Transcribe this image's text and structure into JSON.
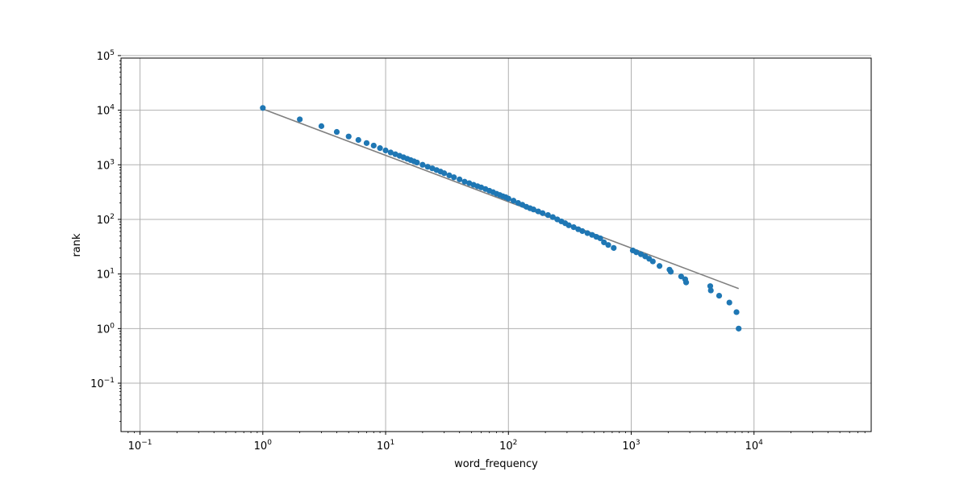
{
  "chart_data": {
    "type": "scatter",
    "title": "",
    "xlabel": "word_frequency",
    "ylabel": "rank",
    "x_scale": "log",
    "y_scale": "log",
    "xlim": [
      0.07,
      90000
    ],
    "ylim": [
      0.013,
      90000
    ],
    "grid": true,
    "x_ticks": [
      {
        "base": "10",
        "exp": "−1",
        "value": 0.1
      },
      {
        "base": "10",
        "exp": "0",
        "value": 1
      },
      {
        "base": "10",
        "exp": "1",
        "value": 10
      },
      {
        "base": "10",
        "exp": "2",
        "value": 100
      },
      {
        "base": "10",
        "exp": "3",
        "value": 1000
      },
      {
        "base": "10",
        "exp": "4",
        "value": 10000
      }
    ],
    "y_ticks": [
      {
        "base": "10",
        "exp": "−1",
        "value": 0.1
      },
      {
        "base": "10",
        "exp": "0",
        "value": 1
      },
      {
        "base": "10",
        "exp": "1",
        "value": 10
      },
      {
        "base": "10",
        "exp": "2",
        "value": 100
      },
      {
        "base": "10",
        "exp": "3",
        "value": 1000
      },
      {
        "base": "10",
        "exp": "4",
        "value": 10000
      },
      {
        "base": "10",
        "exp": "5",
        "value": 100000
      }
    ],
    "series": [
      {
        "kind": "scatter",
        "color": "#1f77b4",
        "points": [
          [
            1,
            11000
          ],
          [
            2,
            6800
          ],
          [
            3,
            5100
          ],
          [
            4,
            4000
          ],
          [
            5,
            3300
          ],
          [
            6,
            2850
          ],
          [
            7,
            2500
          ],
          [
            8,
            2250
          ],
          [
            9,
            2020
          ],
          [
            10,
            1830
          ],
          [
            11,
            1680
          ],
          [
            12,
            1560
          ],
          [
            13,
            1460
          ],
          [
            14,
            1370
          ],
          [
            15,
            1290
          ],
          [
            16,
            1220
          ],
          [
            17,
            1160
          ],
          [
            18,
            1100
          ],
          [
            20,
            1000
          ],
          [
            22,
            920
          ],
          [
            24,
            860
          ],
          [
            26,
            800
          ],
          [
            28,
            750
          ],
          [
            30,
            700
          ],
          [
            33,
            640
          ],
          [
            36,
            590
          ],
          [
            40,
            540
          ],
          [
            44,
            490
          ],
          [
            48,
            460
          ],
          [
            52,
            430
          ],
          [
            56,
            405
          ],
          [
            60,
            385
          ],
          [
            65,
            360
          ],
          [
            70,
            335
          ],
          [
            75,
            315
          ],
          [
            80,
            295
          ],
          [
            85,
            280
          ],
          [
            90,
            265
          ],
          [
            95,
            255
          ],
          [
            100,
            240
          ],
          [
            110,
            220
          ],
          [
            120,
            200
          ],
          [
            130,
            185
          ],
          [
            140,
            170
          ],
          [
            150,
            160
          ],
          [
            160,
            152
          ],
          [
            175,
            140
          ],
          [
            190,
            130
          ],
          [
            210,
            120
          ],
          [
            230,
            110
          ],
          [
            250,
            100
          ],
          [
            270,
            92
          ],
          [
            290,
            85
          ],
          [
            310,
            78
          ],
          [
            340,
            72
          ],
          [
            370,
            66
          ],
          [
            400,
            61
          ],
          [
            440,
            56
          ],
          [
            480,
            52
          ],
          [
            520,
            48
          ],
          [
            560,
            45
          ],
          [
            600,
            38
          ],
          [
            650,
            34
          ],
          [
            720,
            30
          ],
          [
            1030,
            27
          ],
          [
            1100,
            25
          ],
          [
            1200,
            23
          ],
          [
            1300,
            21
          ],
          [
            1400,
            19
          ],
          [
            1500,
            17
          ],
          [
            1700,
            14
          ],
          [
            2050,
            12
          ],
          [
            2100,
            11
          ],
          [
            2550,
            9
          ],
          [
            2750,
            8
          ],
          [
            2800,
            7
          ],
          [
            4400,
            6
          ],
          [
            4450,
            5
          ],
          [
            5200,
            4
          ],
          [
            6300,
            3
          ],
          [
            7200,
            2
          ],
          [
            7500,
            1
          ]
        ]
      },
      {
        "kind": "line",
        "color": "#808080",
        "points": [
          [
            1,
            10500
          ],
          [
            7500,
            5.4
          ]
        ]
      }
    ]
  }
}
